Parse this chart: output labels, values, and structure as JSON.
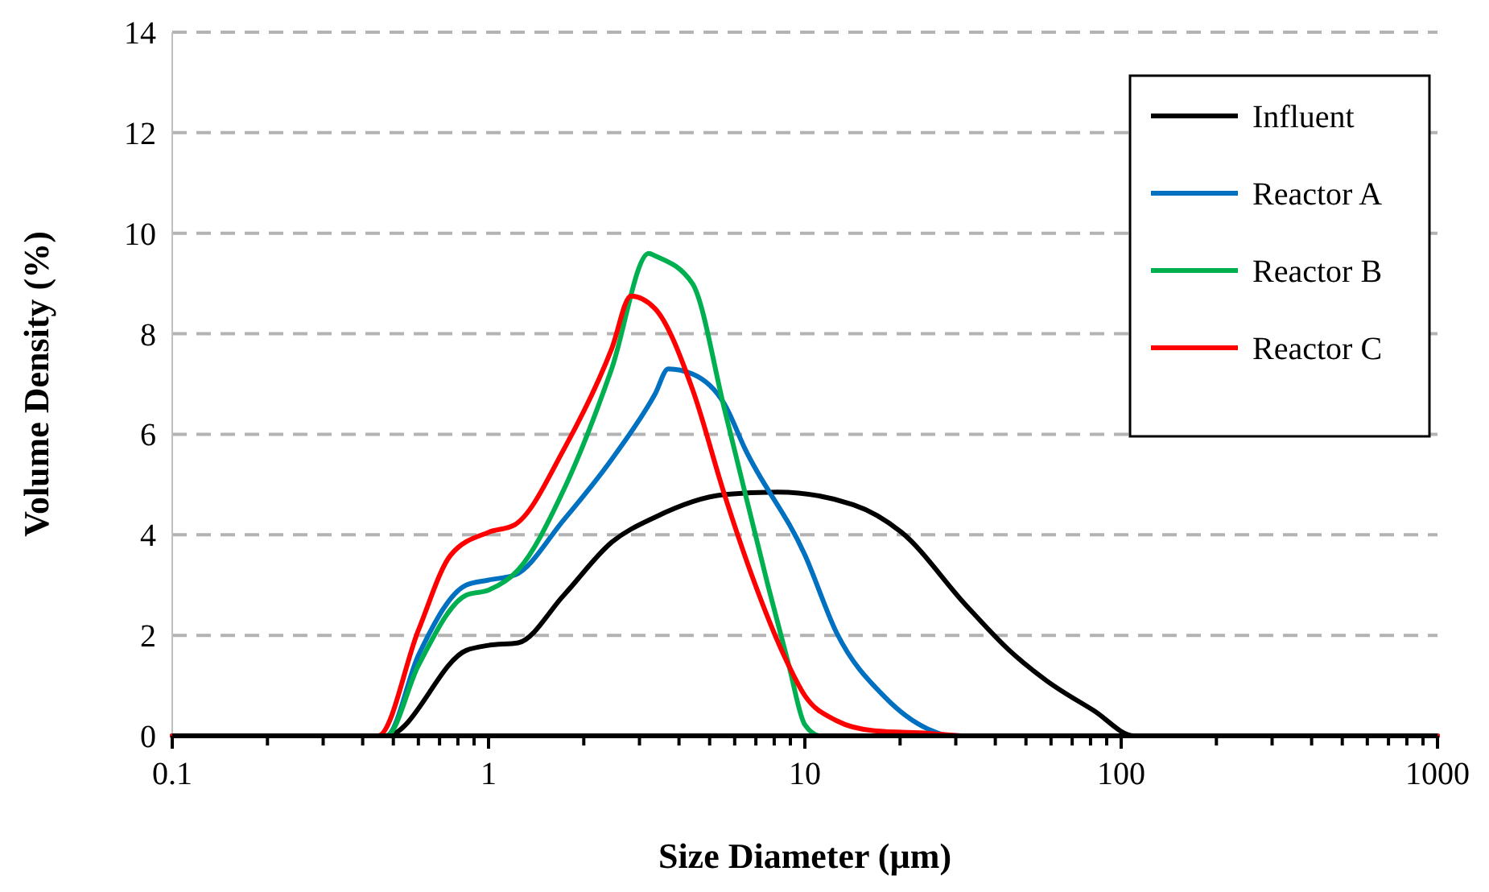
{
  "chart_data": {
    "type": "line",
    "xlabel": "Size Diameter (µm)",
    "ylabel": "Volume Density (%)",
    "log": "x",
    "grid": "y",
    "legend": "top right",
    "line_style": "solid",
    "marker": "none",
    "xlim": [
      0.1,
      1000
    ],
    "ylim": [
      0,
      14
    ],
    "xticks": [
      0.1,
      {
        "value": 0.2,
        "label": null
      },
      {
        "value": 0.3,
        "label": null
      },
      {
        "value": 0.4,
        "label": null
      },
      {
        "value": 0.5,
        "label": null
      },
      {
        "value": 0.6,
        "label": null
      },
      {
        "value": 0.7,
        "label": null
      },
      {
        "value": 0.8,
        "label": null
      },
      {
        "value": 0.9,
        "label": null
      },
      1,
      {
        "value": 2,
        "label": null
      },
      {
        "value": 3,
        "label": null
      },
      {
        "value": 4,
        "label": null
      },
      {
        "value": 5,
        "label": null
      },
      {
        "value": 6,
        "label": null
      },
      {
        "value": 7,
        "label": null
      },
      {
        "value": 8,
        "label": null
      },
      {
        "value": 9,
        "label": null
      },
      10,
      {
        "value": 20,
        "label": null
      },
      {
        "value": 30,
        "label": null
      },
      {
        "value": 40,
        "label": null
      },
      {
        "value": 50,
        "label": null
      },
      {
        "value": 60,
        "label": null
      },
      {
        "value": 70,
        "label": null
      },
      {
        "value": 80,
        "label": null
      },
      {
        "value": 90,
        "label": null
      },
      100,
      {
        "value": 200,
        "label": null
      },
      {
        "value": 300,
        "label": null
      },
      {
        "value": 400,
        "label": null
      },
      {
        "value": 500,
        "label": null
      },
      {
        "value": 600,
        "label": null
      },
      {
        "value": 700,
        "label": null
      },
      {
        "value": 800,
        "label": null
      },
      {
        "value": 900,
        "label": null
      },
      1000
    ],
    "yticks": [
      0,
      2,
      4,
      6,
      8,
      10,
      12,
      14
    ],
    "series": [
      {
        "name": "Influent",
        "color": "#000000",
        "x": [
          0.1,
          0.475,
          0.85,
          1,
          1.24,
          1.73,
          2.45,
          3.36,
          5.57,
          8.2,
          14.2,
          20.2,
          32.3,
          44.3,
          58,
          82,
          110,
          1000
        ],
        "values": [
          0,
          0,
          1.7,
          1.8,
          1.85,
          2.8,
          3.85,
          4.35,
          4.8,
          4.85,
          4.6,
          4.05,
          2.6,
          1.7,
          1.1,
          0.5,
          0,
          0
        ]
      },
      {
        "name": "Reactor A",
        "color": "#0070c0",
        "x": [
          0.1,
          0.475,
          0.6,
          0.85,
          1,
          1.21,
          1.73,
          2.45,
          3.36,
          3.7,
          4.41,
          5.57,
          6.48,
          10,
          12.6,
          17.9,
          24.6,
          28.7,
          1000
        ],
        "values": [
          0,
          0,
          1.6,
          3,
          3.1,
          3.2,
          4.3,
          5.5,
          6.8,
          7.3,
          7.2,
          6.6,
          5.7,
          3.6,
          2.05,
          0.77,
          0.13,
          0,
          0
        ]
      },
      {
        "name": "Reactor B",
        "color": "#00b050",
        "x": [
          0.1,
          0.475,
          0.6,
          0.85,
          1,
          1.24,
          1.73,
          2.45,
          3.21,
          3.36,
          4.41,
          5.57,
          6.04,
          7.64,
          8.9,
          10,
          11.2,
          1000
        ],
        "values": [
          0,
          0,
          1.4,
          2.8,
          2.9,
          3.3,
          4.9,
          7.3,
          9.6,
          9.55,
          9.0,
          6.5,
          5.6,
          3.0,
          1.4,
          0.22,
          0,
          0
        ]
      },
      {
        "name": "Reactor C",
        "color": "#ff0000",
        "x": [
          0.1,
          0.448,
          0.6,
          0.76,
          1,
          1.21,
          1.73,
          2.45,
          2.82,
          3.36,
          4.41,
          5.57,
          6.79,
          8.59,
          10,
          12.6,
          16.6,
          24.6,
          32.3,
          1000
        ],
        "values": [
          0,
          0,
          2.1,
          3.6,
          4.05,
          4.2,
          5.7,
          7.7,
          8.75,
          8.5,
          6.9,
          4.8,
          3.2,
          1.6,
          0.8,
          0.3,
          0.1,
          0.05,
          0,
          0
        ]
      }
    ]
  }
}
